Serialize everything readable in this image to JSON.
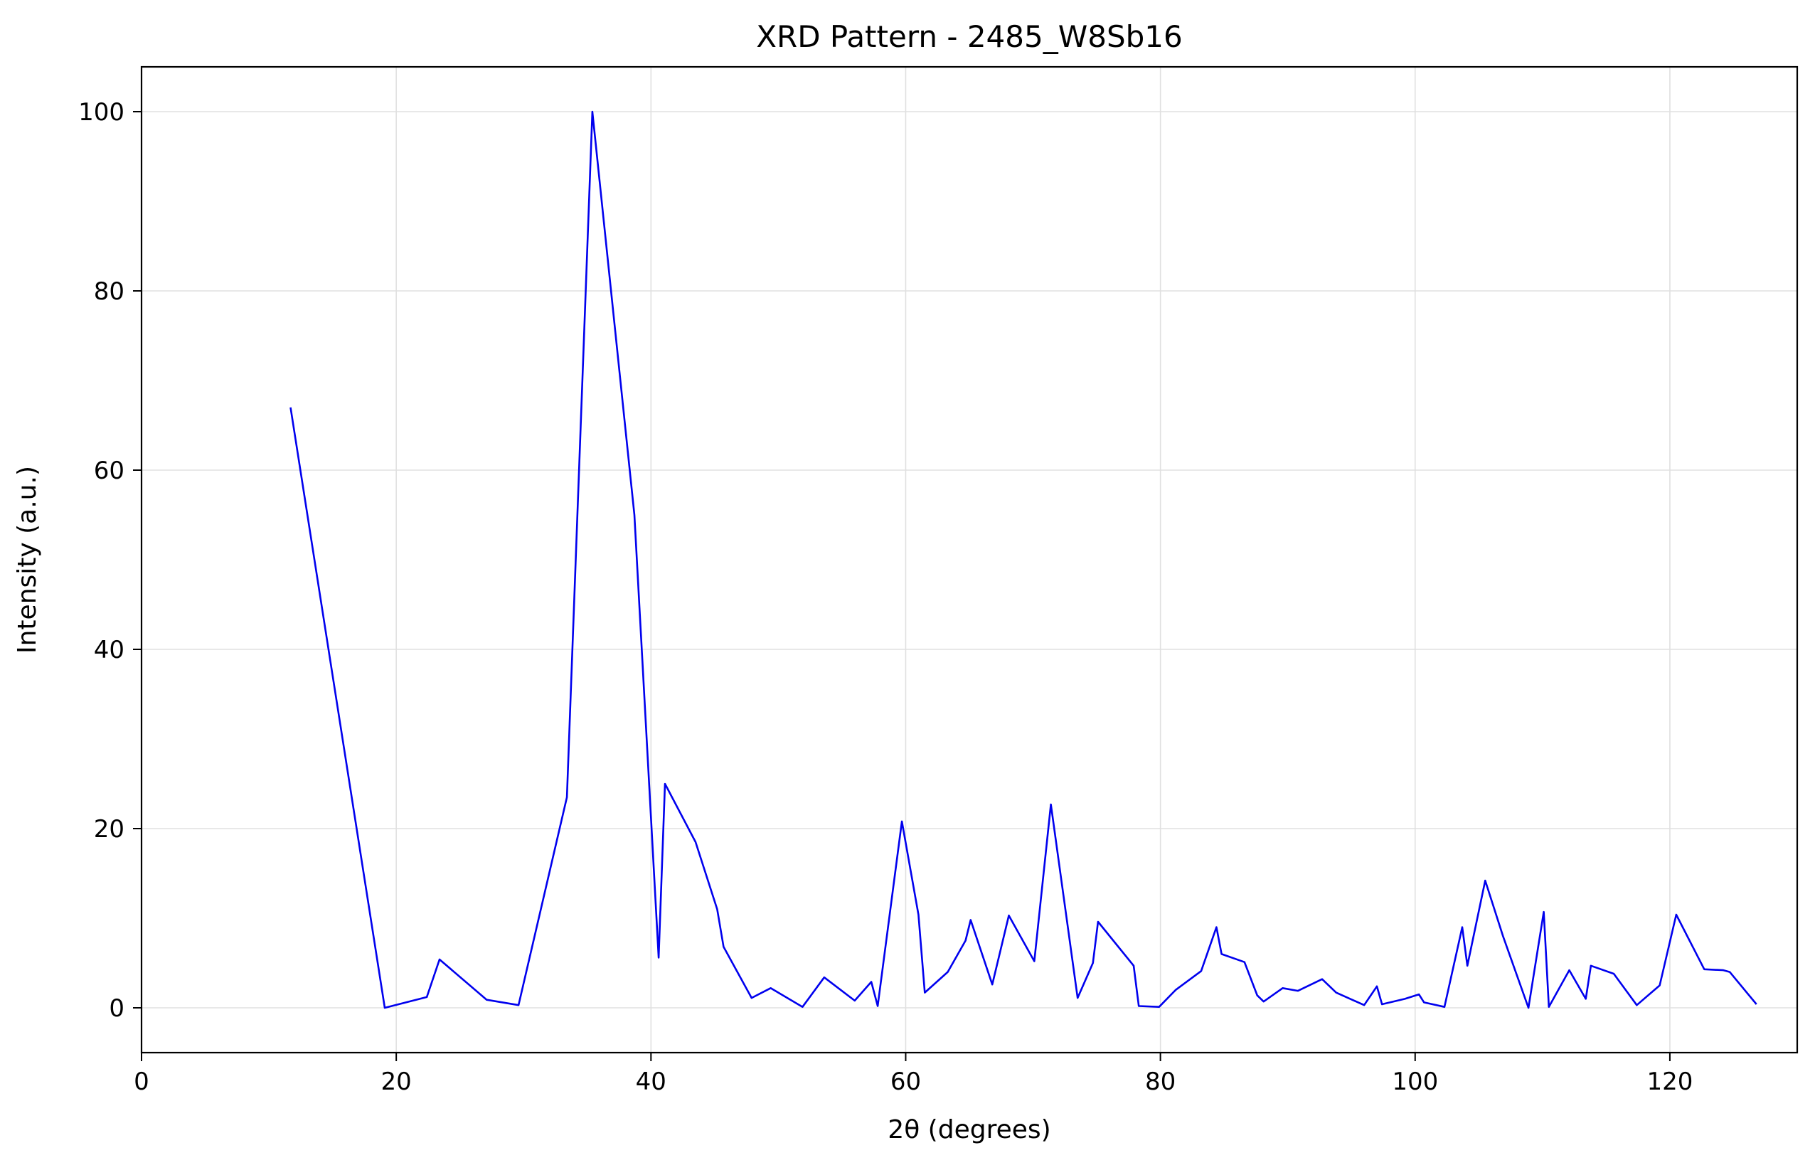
{
  "chart_data": {
    "type": "line",
    "title": "XRD Pattern - 2485_W8Sb16",
    "xlabel": "2θ (degrees)",
    "ylabel": "Intensity (a.u.)",
    "xlim": [
      0,
      130
    ],
    "ylim": [
      -5,
      105
    ],
    "xticks": [
      0,
      20,
      40,
      60,
      80,
      100,
      120
    ],
    "yticks": [
      0,
      20,
      40,
      60,
      80,
      100
    ],
    "grid": true,
    "line_color": "#0000ee",
    "series": [
      {
        "x": [
          11.7,
          19.1,
          22.4,
          23.4,
          27.1,
          29.6,
          33.4,
          35.4,
          38.7,
          40.6,
          41.1,
          43.5,
          45.2,
          45.7,
          47.9,
          49.4,
          51.9,
          53.6,
          56.0,
          57.3,
          57.8,
          59.7,
          61.0,
          61.5,
          63.3,
          64.7,
          65.1,
          66.8,
          68.1,
          70.1,
          71.4,
          73.5,
          74.7,
          75.1,
          77.9,
          78.3,
          79.9,
          81.2,
          83.2,
          84.4,
          84.8,
          86.6,
          87.6,
          88.1,
          89.6,
          90.8,
          92.7,
          93.8,
          96.0,
          97.0,
          97.4,
          99.2,
          100.3,
          100.7,
          102.3,
          103.7,
          104.1,
          105.5,
          106.9,
          108.9,
          110.1,
          110.5,
          112.1,
          113.4,
          113.8,
          115.6,
          117.4,
          119.2,
          120.5,
          122.7,
          124.2,
          124.7,
          126.8
        ],
        "y": [
          67.0,
          0.0,
          1.2,
          5.4,
          0.9,
          0.3,
          23.5,
          100.0,
          55.0,
          5.6,
          25.0,
          18.5,
          11.0,
          6.8,
          1.1,
          2.2,
          0.1,
          3.4,
          0.8,
          2.9,
          0.2,
          20.8,
          10.4,
          1.7,
          4.0,
          7.5,
          9.8,
          2.6,
          10.3,
          5.2,
          22.7,
          1.1,
          5.0,
          9.6,
          4.7,
          0.2,
          0.1,
          2.0,
          4.1,
          9.0,
          6.0,
          5.1,
          1.4,
          0.7,
          2.2,
          1.9,
          3.2,
          1.7,
          0.3,
          2.4,
          0.4,
          1.0,
          1.5,
          0.6,
          0.1,
          9.0,
          4.7,
          14.2,
          8.0,
          0.0,
          10.7,
          0.1,
          4.2,
          1.0,
          4.7,
          3.8,
          0.3,
          2.5,
          10.4,
          4.3,
          4.2,
          4.0,
          0.4
        ]
      }
    ]
  }
}
